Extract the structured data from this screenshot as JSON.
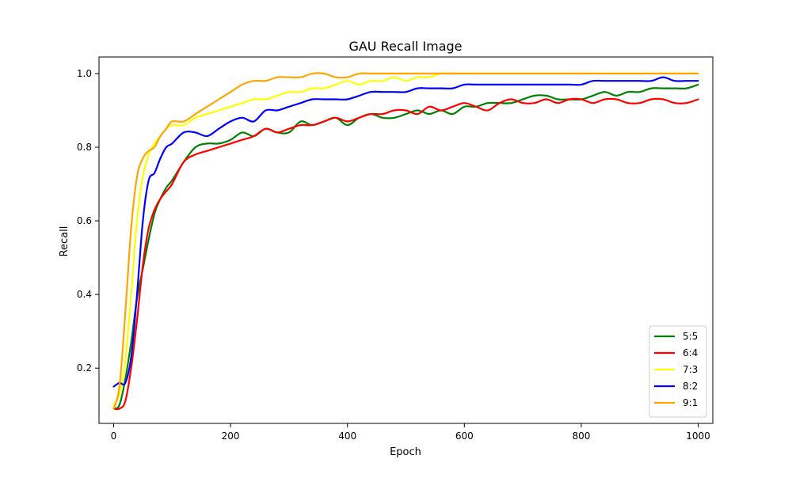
{
  "chart_data": {
    "type": "line",
    "title": "GAU Recall Image",
    "xlabel": "Epoch",
    "ylabel": "Recall",
    "xlim": [
      -25,
      1025
    ],
    "ylim": [
      0.05,
      1.045
    ],
    "xticks": [
      0,
      200,
      400,
      600,
      800,
      1000
    ],
    "xtick_labels": [
      "0",
      "200",
      "400",
      "600",
      "800",
      "1000"
    ],
    "yticks": [
      0.2,
      0.4,
      0.6,
      0.8,
      1.0
    ],
    "ytick_labels": [
      "0.2",
      "0.4",
      "0.6",
      "0.8",
      "1.0"
    ],
    "grid": false,
    "legend_position": "lower-right",
    "x": [
      0,
      10,
      20,
      30,
      40,
      50,
      60,
      70,
      80,
      90,
      100,
      120,
      140,
      160,
      180,
      200,
      220,
      240,
      260,
      280,
      300,
      320,
      340,
      360,
      380,
      400,
      420,
      440,
      460,
      480,
      500,
      520,
      540,
      560,
      580,
      600,
      620,
      640,
      660,
      680,
      700,
      720,
      740,
      760,
      780,
      800,
      820,
      840,
      860,
      880,
      900,
      920,
      940,
      960,
      980,
      1000
    ],
    "series": [
      {
        "name": "5:5",
        "color": "#008000",
        "values": [
          0.09,
          0.1,
          0.17,
          0.27,
          0.39,
          0.47,
          0.55,
          0.62,
          0.66,
          0.69,
          0.71,
          0.76,
          0.8,
          0.81,
          0.81,
          0.82,
          0.84,
          0.83,
          0.85,
          0.84,
          0.84,
          0.87,
          0.86,
          0.87,
          0.88,
          0.86,
          0.88,
          0.89,
          0.88,
          0.88,
          0.89,
          0.9,
          0.89,
          0.9,
          0.89,
          0.91,
          0.91,
          0.92,
          0.92,
          0.92,
          0.93,
          0.94,
          0.94,
          0.93,
          0.93,
          0.93,
          0.94,
          0.95,
          0.94,
          0.95,
          0.95,
          0.96,
          0.96,
          0.96,
          0.96,
          0.97
        ]
      },
      {
        "name": "6:4",
        "color": "#ff0000",
        "values": [
          0.09,
          0.09,
          0.11,
          0.2,
          0.33,
          0.48,
          0.58,
          0.63,
          0.66,
          0.68,
          0.7,
          0.76,
          0.78,
          0.79,
          0.8,
          0.81,
          0.82,
          0.83,
          0.85,
          0.84,
          0.85,
          0.86,
          0.86,
          0.87,
          0.88,
          0.87,
          0.88,
          0.89,
          0.89,
          0.9,
          0.9,
          0.89,
          0.91,
          0.9,
          0.91,
          0.92,
          0.91,
          0.9,
          0.92,
          0.93,
          0.92,
          0.92,
          0.93,
          0.92,
          0.93,
          0.93,
          0.92,
          0.93,
          0.93,
          0.92,
          0.92,
          0.93,
          0.93,
          0.92,
          0.92,
          0.93
        ]
      },
      {
        "name": "7:3",
        "color": "#ffff00",
        "values": [
          0.1,
          0.13,
          0.22,
          0.4,
          0.6,
          0.72,
          0.78,
          0.81,
          0.83,
          0.85,
          0.86,
          0.86,
          0.88,
          0.89,
          0.9,
          0.91,
          0.92,
          0.93,
          0.93,
          0.94,
          0.95,
          0.95,
          0.96,
          0.96,
          0.97,
          0.98,
          0.97,
          0.98,
          0.98,
          0.99,
          0.98,
          0.99,
          0.99,
          1.0,
          1.0,
          1.0,
          1.0,
          1.0,
          1.0,
          1.0,
          1.0,
          1.0,
          1.0,
          1.0,
          1.0,
          1.0,
          1.0,
          1.0,
          1.0,
          1.0,
          1.0,
          1.0,
          1.0,
          1.0,
          1.0,
          1.0
        ]
      },
      {
        "name": "8:2",
        "color": "#0000ff",
        "values": [
          0.15,
          0.16,
          0.16,
          0.23,
          0.4,
          0.6,
          0.71,
          0.73,
          0.77,
          0.8,
          0.81,
          0.84,
          0.84,
          0.83,
          0.85,
          0.87,
          0.88,
          0.87,
          0.9,
          0.9,
          0.91,
          0.92,
          0.93,
          0.93,
          0.93,
          0.93,
          0.94,
          0.95,
          0.95,
          0.95,
          0.95,
          0.96,
          0.96,
          0.96,
          0.96,
          0.97,
          0.97,
          0.97,
          0.97,
          0.97,
          0.97,
          0.97,
          0.97,
          0.97,
          0.97,
          0.97,
          0.98,
          0.98,
          0.98,
          0.98,
          0.98,
          0.98,
          0.99,
          0.98,
          0.98,
          0.98
        ]
      },
      {
        "name": "9:1",
        "color": "#ffa500",
        "values": [
          0.09,
          0.15,
          0.35,
          0.58,
          0.72,
          0.77,
          0.79,
          0.8,
          0.83,
          0.85,
          0.87,
          0.87,
          0.89,
          0.91,
          0.93,
          0.95,
          0.97,
          0.98,
          0.98,
          0.99,
          0.99,
          0.99,
          1.0,
          1.0,
          0.99,
          0.99,
          1.0,
          1.0,
          1.0,
          1.0,
          1.0,
          1.0,
          1.0,
          1.0,
          1.0,
          1.0,
          1.0,
          1.0,
          1.0,
          1.0,
          1.0,
          1.0,
          1.0,
          1.0,
          1.0,
          1.0,
          1.0,
          1.0,
          1.0,
          1.0,
          1.0,
          1.0,
          1.0,
          1.0,
          1.0,
          1.0
        ]
      }
    ]
  }
}
